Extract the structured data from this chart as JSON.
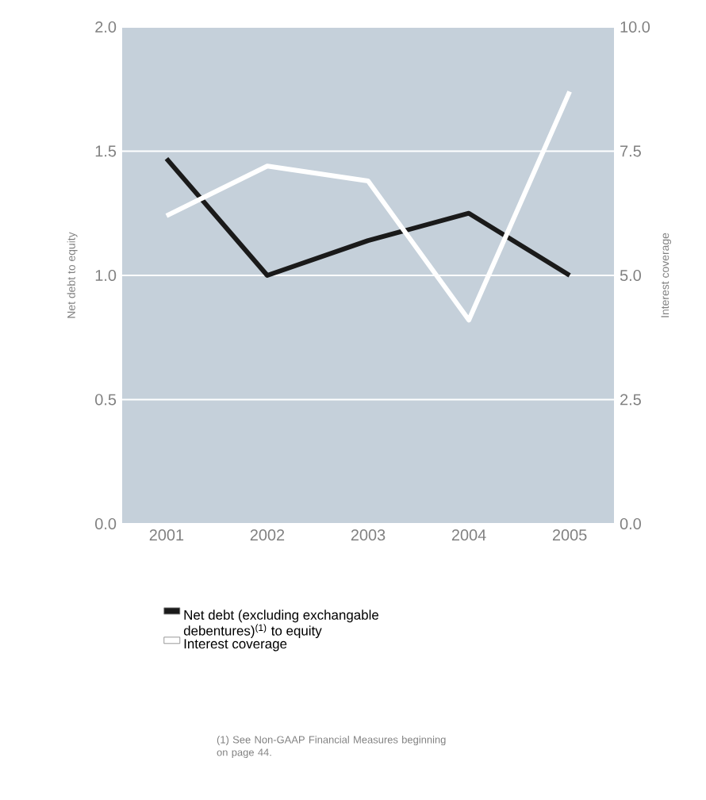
{
  "chart_data": {
    "type": "line",
    "categories": [
      "2001",
      "2002",
      "2003",
      "2004",
      "2005"
    ],
    "series": [
      {
        "name": "Net debt (excluding exchangable debentures)$^{(1)}$ to equity",
        "color": "#1a1a1a",
        "values": [
          1.47,
          1.0,
          1.14,
          1.25,
          1.0
        ]
      },
      {
        "name": "Interest coverage",
        "color": "#ffffff",
        "axis": "y2",
        "values": [
          6.2,
          7.2,
          6.9,
          4.1,
          8.7
        ]
      }
    ],
    "ylabel": "Net debt to equity",
    "y2label": "Interest coverage",
    "ylim": [
      0,
      2.0
    ],
    "yticks": [
      {
        "value": 0,
        "label": "0.0"
      },
      0.5,
      {
        "value": 1,
        "label": "1.0"
      },
      1.5,
      {
        "value": 2,
        "label": "2.0"
      }
    ],
    "y2lim": [
      0,
      10.0
    ],
    "y2ticks": [
      {
        "value": 0,
        "label": "0.0"
      },
      2.5,
      {
        "value": 5,
        "label": "5.0"
      },
      7.5,
      {
        "value": 10,
        "label": "10.0"
      }
    ],
    "grid": "y",
    "legend": "bottom",
    "marker": "none",
    "line_style": "solid",
    "annotations": [
      "(1) See Non-GAAP Financial Measures beginning on page 44."
    ]
  }
}
